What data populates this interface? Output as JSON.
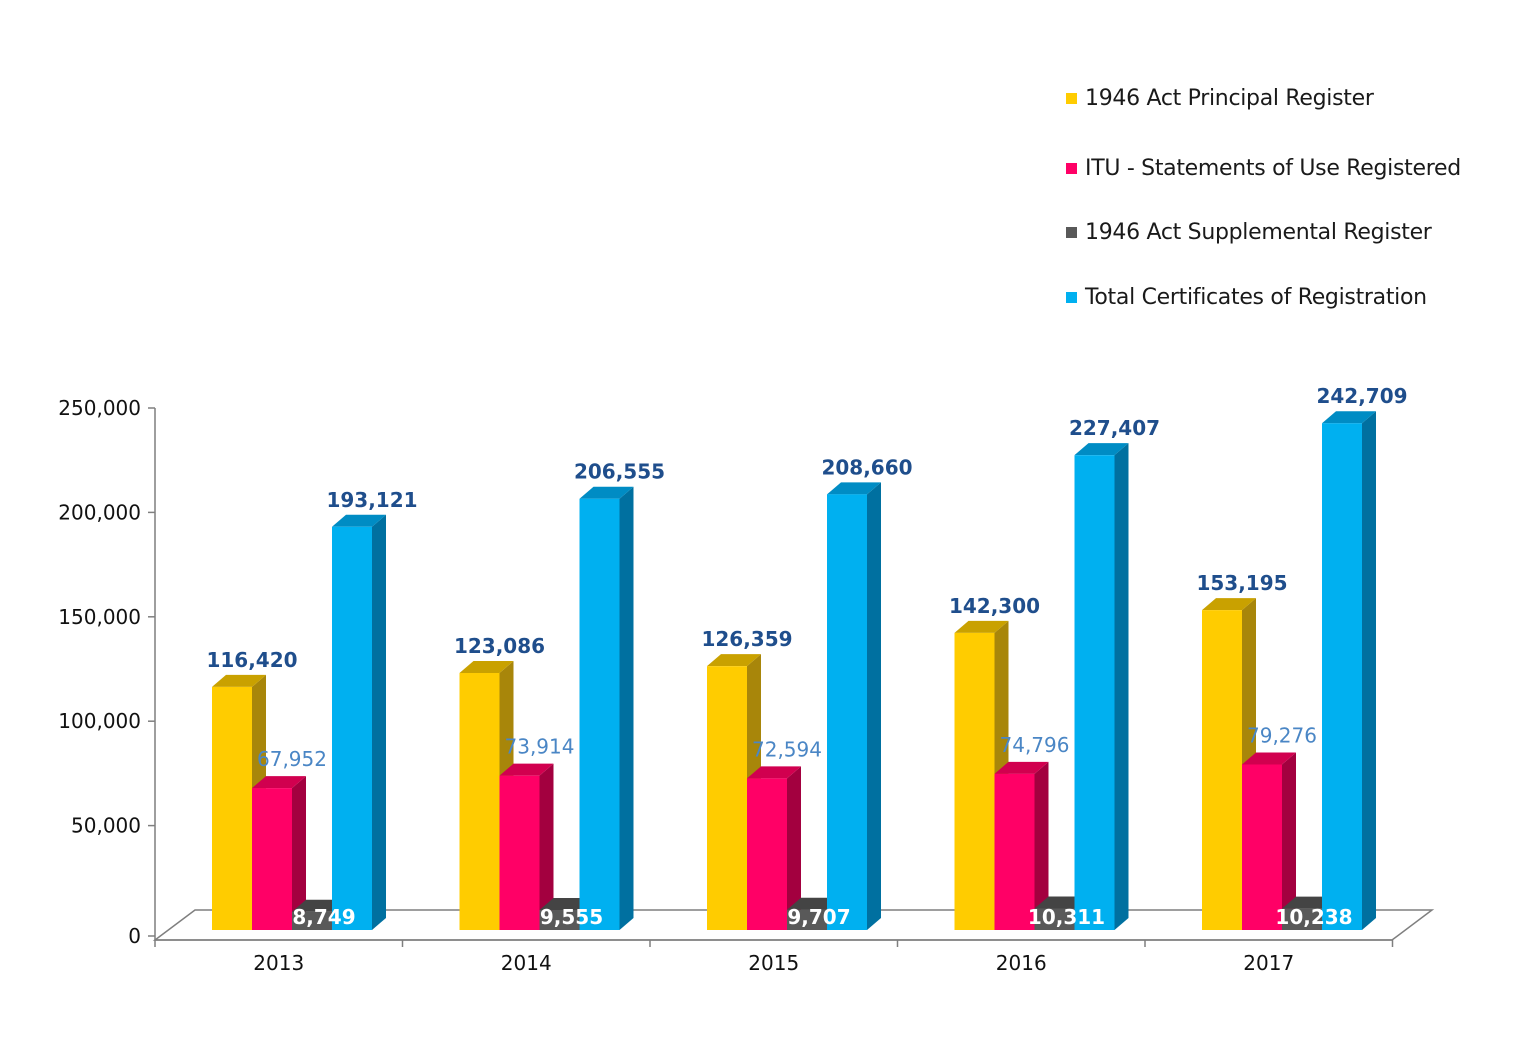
{
  "chart_data": {
    "type": "bar",
    "categories": [
      "2013",
      "2014",
      "2015",
      "2016",
      "2017"
    ],
    "series": [
      {
        "name": "1946 Act Principal Register",
        "color": "#FFCC00",
        "side": "#A8860A",
        "top": "#C9A100",
        "label_color": "#1F4E8C",
        "values": [
          116420,
          123086,
          126359,
          142300,
          153195
        ],
        "labels": [
          "116,420",
          "123,086",
          "126,359",
          "142,300",
          "153,195"
        ]
      },
      {
        "name": "ITU - Statements of Use Registered",
        "color": "#FF0066",
        "side": "#A3003F",
        "top": "#D1004F",
        "label_color": "#4A86C5",
        "values": [
          67952,
          73914,
          72594,
          74796,
          79276
        ],
        "labels": [
          "67,952",
          "73,914",
          "72,594",
          "74,796",
          "79,276"
        ]
      },
      {
        "name": "1946 Act Supplemental Register",
        "color": "#595959",
        "side": "#3A3A3A",
        "top": "#444444",
        "label_color": "#FFFFFF",
        "values": [
          8749,
          9555,
          9707,
          10311,
          10238
        ],
        "labels": [
          "8,749",
          "9,555",
          "9,707",
          "10,311",
          "10,238"
        ]
      },
      {
        "name": "Total Certificates of Registration",
        "color": "#00B0F0",
        "side": "#0070A0",
        "top": "#008CC4",
        "label_color": "#1F4E8C",
        "values": [
          193121,
          206555,
          208660,
          227407,
          242709
        ],
        "labels": [
          "193,121",
          "206,555",
          "208,660",
          "227,407",
          "242,709"
        ]
      }
    ],
    "y_ticks": [
      "0",
      "50,000",
      "100,000",
      "150,000",
      "200,000",
      "250,000"
    ],
    "ylim": [
      0,
      250000
    ],
    "grid": false,
    "legend": "top-right",
    "title": "",
    "xlabel": "",
    "ylabel": ""
  }
}
